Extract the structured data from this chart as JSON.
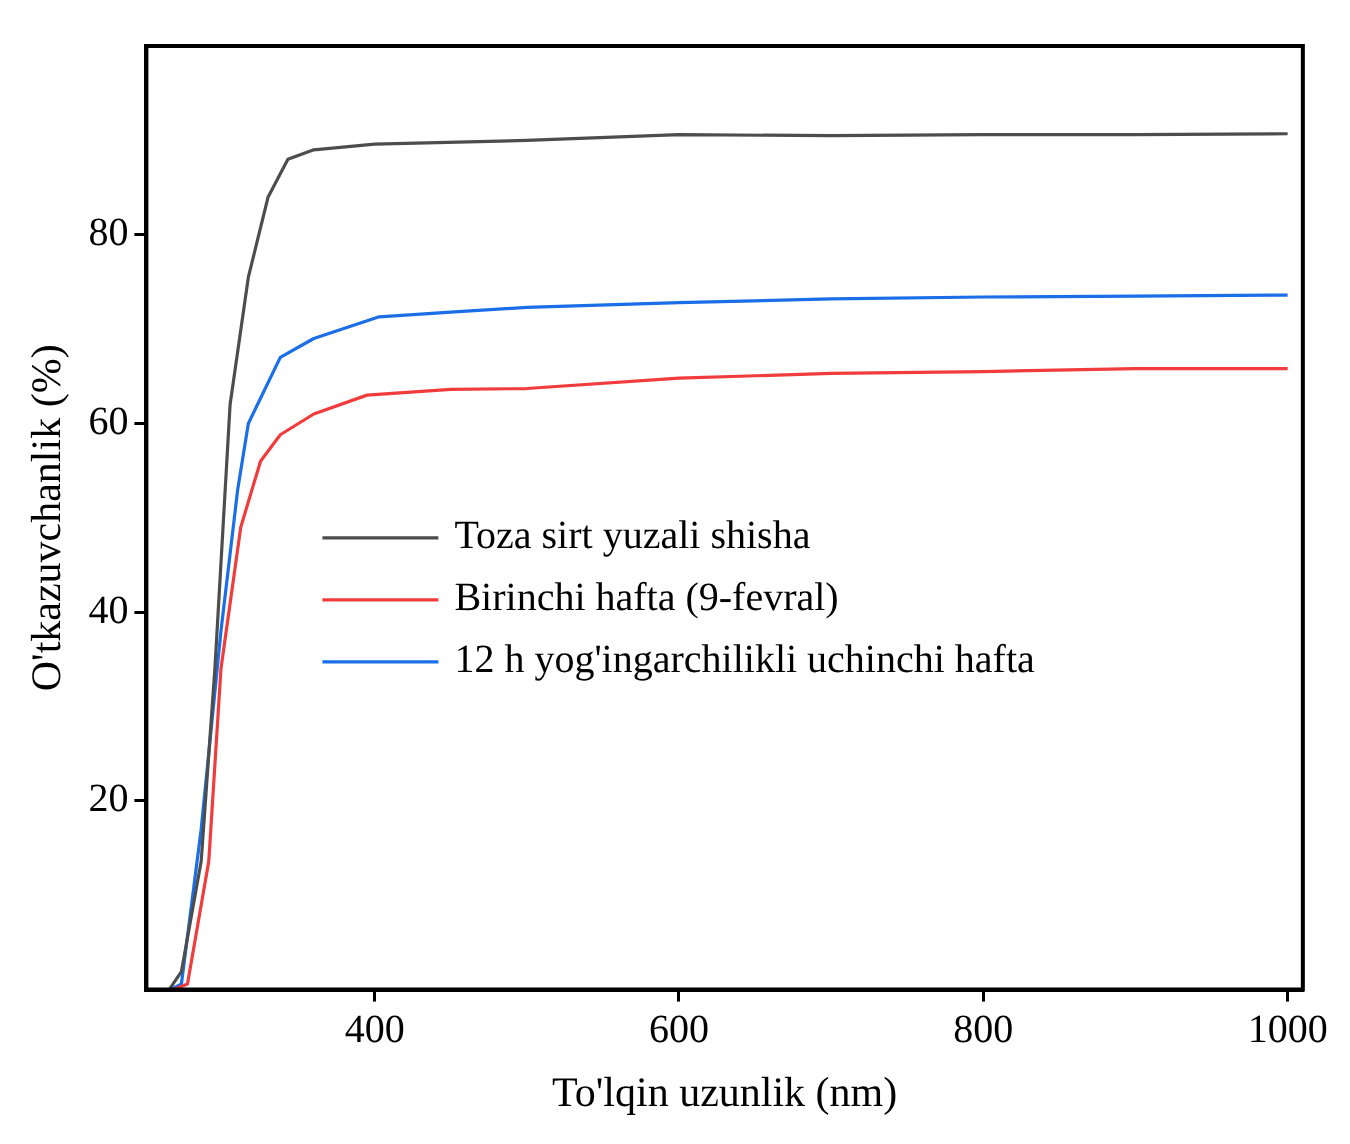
{
  "chart_data": {
    "type": "line",
    "xlabel": "To'lqin uzunlik (nm)",
    "ylabel": "O'tkazuvchanlik (%)",
    "xlim": [
      250,
      1010
    ],
    "xticks": [
      400,
      600,
      800,
      1000
    ],
    "ylim": [
      0,
      100
    ],
    "yticks": [
      20,
      40,
      60,
      80
    ],
    "grid": false,
    "legend": "left",
    "marker": "none",
    "line_style": "solid",
    "series": [
      {
        "name": "Toza sirt yuzali shisha",
        "color": "#4d4d4d",
        "x": [
          250,
          265,
          273,
          286,
          295,
          305,
          317,
          330,
          343,
          360,
          400,
          500,
          600,
          700,
          800,
          900,
          1000
        ],
        "values": [
          0,
          0,
          1.9,
          13.6,
          34,
          62,
          75.5,
          84,
          88,
          89,
          89.6,
          90,
          90.6,
          90.5,
          90.6,
          90.6,
          90.7
        ]
      },
      {
        "name": "Birinchi hafta (9-fevral)",
        "color": "#f03c3c",
        "x": [
          250,
          268,
          277,
          291,
          299,
          312,
          325,
          338,
          360,
          395,
          450,
          500,
          600,
          700,
          800,
          900,
          1000
        ],
        "values": [
          0,
          0,
          0.6,
          13.6,
          34,
          49,
          56,
          58.8,
          61,
          63,
          63.6,
          63.7,
          64.8,
          65.3,
          65.5,
          65.8,
          65.8
        ]
      },
      {
        "name": "12 h yog'ingarchilikli uchinchi hafta",
        "color": "#1a6ee8",
        "x": [
          250,
          266,
          273,
          286,
          299,
          310,
          317,
          338,
          360,
          403,
          450,
          500,
          600,
          700,
          800,
          900,
          1000
        ],
        "values": [
          0,
          0,
          0.6,
          17,
          38,
          53,
          60,
          67,
          69,
          71.3,
          71.8,
          72.3,
          72.8,
          73.2,
          73.4,
          73.5,
          73.6
        ]
      }
    ]
  }
}
